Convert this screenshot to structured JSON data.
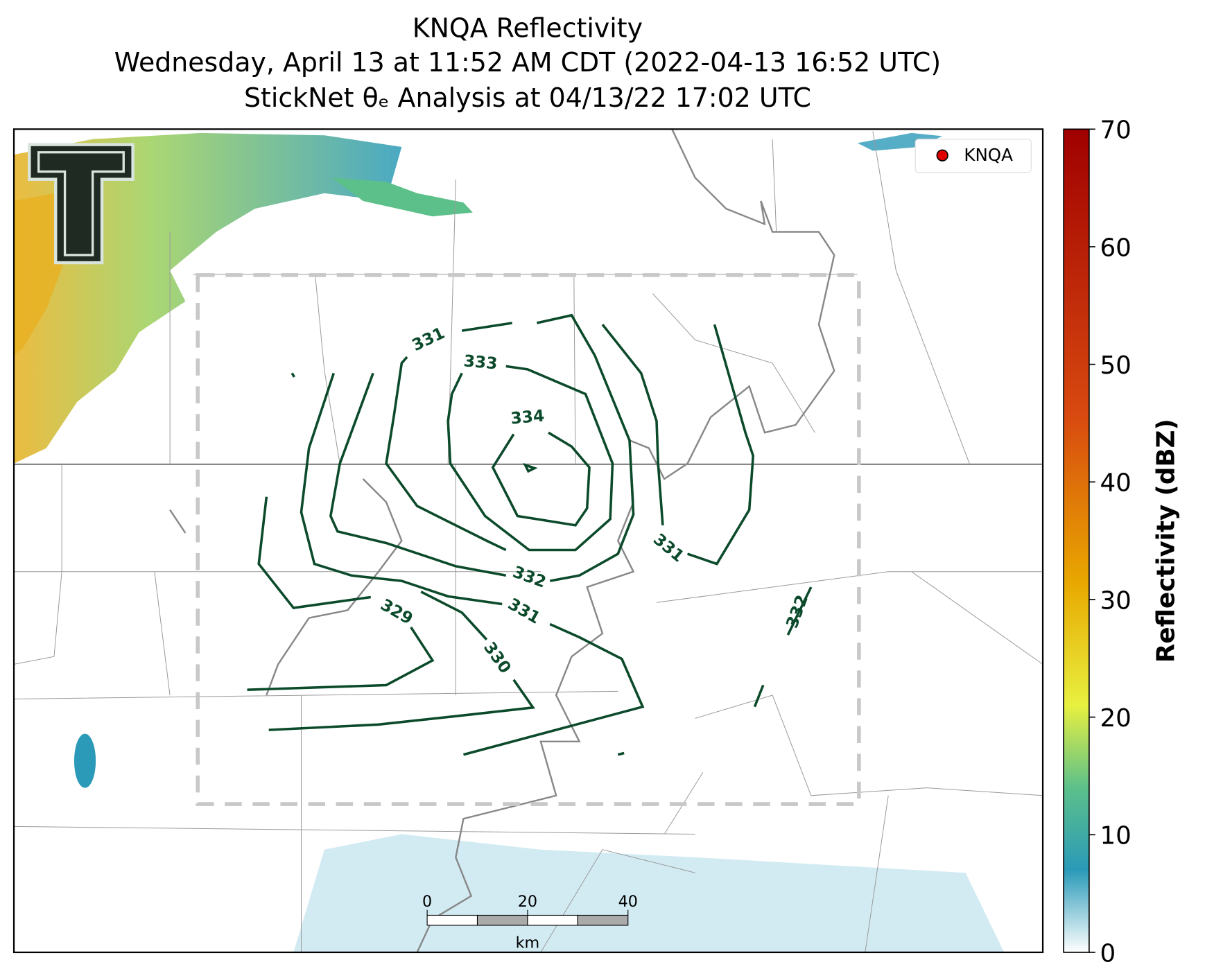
{
  "title": [
    "KNQA Reflectivity",
    "Wednesday, April 13 at 11:52 AM CDT (2022-04-13 16:52 UTC)",
    "StickNet θₑ Analysis at 04/13/22 17:02 UTC"
  ],
  "legend": {
    "label": "KNQA"
  },
  "contour_labels": [
    331,
    333,
    334,
    332,
    331,
    329,
    330,
    331,
    332
  ],
  "colorbar": {
    "label": "Reflectivity (dBZ)",
    "lim": [
      0,
      70
    ],
    "ticks": [
      0,
      10,
      20,
      30,
      40,
      50,
      60,
      70
    ]
  },
  "scale_bar": {
    "ticks": [
      0,
      20,
      40
    ],
    "unit": "km"
  }
}
